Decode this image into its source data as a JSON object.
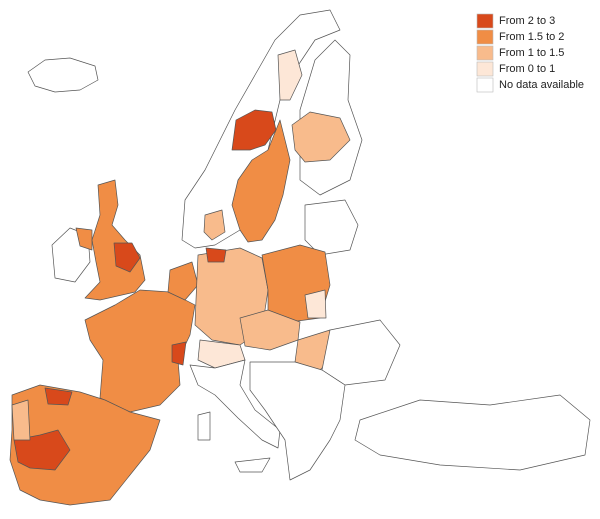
{
  "legend": [
    {
      "label": "From 2 to 3",
      "color": "#d8491b"
    },
    {
      "label": "From 1.5 to 2",
      "color": "#f08d45"
    },
    {
      "label": "From 1 to 1.5",
      "color": "#f8bb8c"
    },
    {
      "label": "From 0 to 1",
      "color": "#fde7d7"
    },
    {
      "label": "No data available",
      "color": "#ffffff"
    }
  ]
}
